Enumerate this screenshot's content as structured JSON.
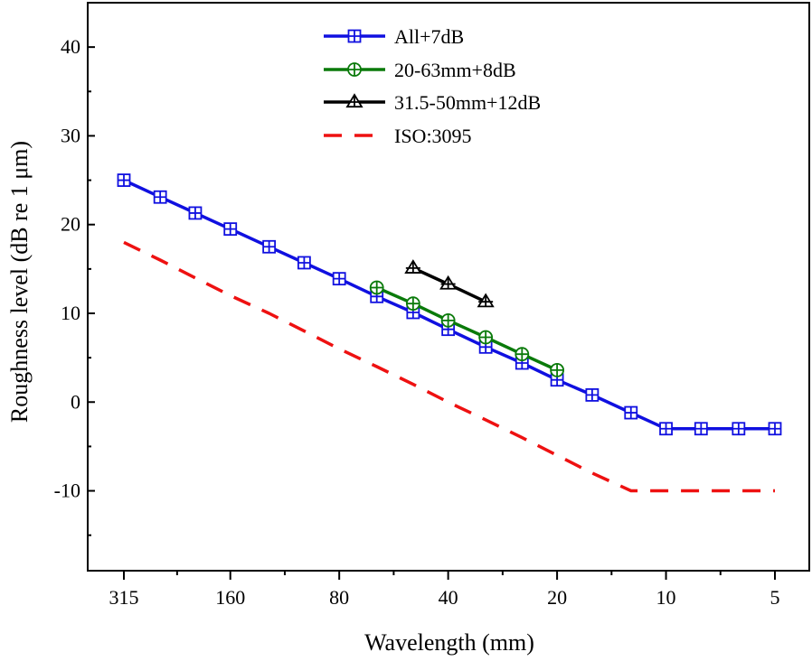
{
  "chart_data": {
    "type": "line",
    "xlabel": "Wavelength (mm)",
    "ylabel": "Roughness level (dB re 1 μm)",
    "x_scale": "log",
    "x_reversed": true,
    "ylim": [
      -19,
      45
    ],
    "y_ticks": [
      -10,
      0,
      10,
      20,
      30,
      40
    ],
    "y_tick_labels": [
      "-10",
      "0",
      "10",
      "20",
      "30",
      "40"
    ],
    "x_ticks": [
      315,
      160,
      80,
      40,
      20,
      10,
      5
    ],
    "x_tick_labels": [
      "315",
      "160",
      "80",
      "40",
      "20",
      "10",
      "5"
    ],
    "legend_position": "top-center",
    "series": [
      {
        "name": "All+7dB",
        "color": "#1010e0",
        "marker": "square-plus",
        "dash": "solid",
        "x": [
          315,
          250,
          200,
          160,
          125,
          100,
          80,
          63,
          50,
          40,
          31.5,
          25,
          20,
          16,
          12.5,
          10,
          8,
          6.3,
          5
        ],
        "y": [
          25,
          23.1,
          21.3,
          19.5,
          17.5,
          15.7,
          13.9,
          11.9,
          10.1,
          8.2,
          6.2,
          4.4,
          2.5,
          0.8,
          -1.2,
          -3,
          -3,
          -3,
          -3
        ]
      },
      {
        "name": "20-63mm+8dB",
        "color": "#0a7a0a",
        "marker": "circle-plus",
        "dash": "solid",
        "x": [
          63,
          50,
          40,
          31.5,
          25,
          20
        ],
        "y": [
          12.9,
          11.1,
          9.2,
          7.3,
          5.4,
          3.6
        ]
      },
      {
        "name": "31.5-50mm+12dB",
        "color": "#000000",
        "marker": "triangle-plus",
        "dash": "solid",
        "x": [
          50,
          40,
          31.5
        ],
        "y": [
          15.1,
          13.3,
          11.3
        ]
      },
      {
        "name": "ISO:3095",
        "color": "#ee1111",
        "marker": "none",
        "dash": "dashed",
        "x": [
          315,
          250,
          200,
          160,
          125,
          100,
          80,
          63,
          50,
          40,
          31.5,
          25,
          20,
          16,
          12.5,
          10,
          8,
          6.3,
          5
        ],
        "y": [
          18,
          16,
          14,
          12,
          10,
          8,
          6,
          4,
          2,
          0,
          -2,
          -4,
          -6,
          -8,
          -10,
          -10,
          -10,
          -10,
          -10
        ]
      }
    ]
  }
}
